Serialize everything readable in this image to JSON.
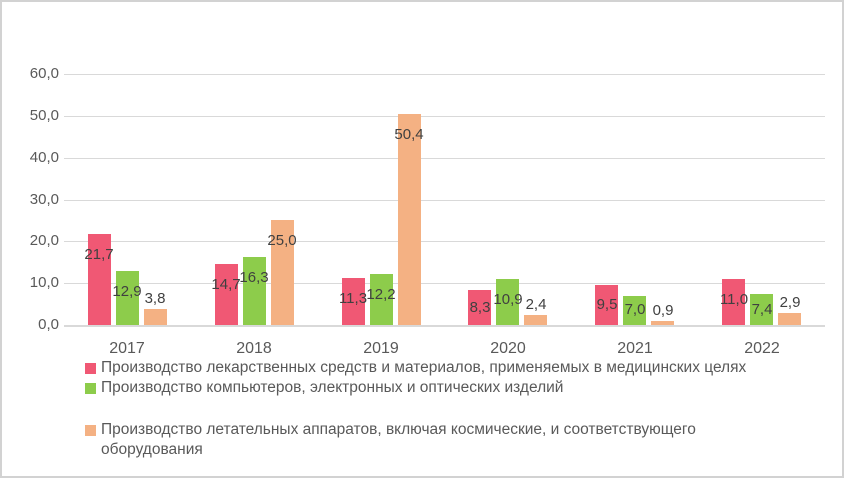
{
  "chart_data": {
    "type": "bar",
    "title": "",
    "categories": [
      "2017",
      "2018",
      "2019",
      "2020",
      "2021",
      "2022"
    ],
    "series": [
      {
        "name": "Производство лекарственных средств и материалов, применяемых в медицинских целях",
        "color": "#F05874",
        "values": [
          21.7,
          14.7,
          11.3,
          8.3,
          9.5,
          11.0
        ],
        "value_labels": [
          "21,7",
          "14,7",
          "11,3",
          "8,3",
          "9,5",
          "11,0"
        ]
      },
      {
        "name": "Производство компьютеров, электронных и оптических изделий",
        "color": "#8DCC4B",
        "values": [
          12.9,
          16.3,
          12.2,
          10.9,
          7.0,
          7.4
        ],
        "value_labels": [
          "12,9",
          "16,3",
          "12,2",
          "10,9",
          "7,0",
          "7,4"
        ]
      },
      {
        "name": "Производство летательных аппаратов, включая космические, и соответствующего оборудования",
        "color": "#F4B183",
        "values": [
          3.8,
          25.0,
          50.4,
          2.4,
          0.9,
          2.9
        ],
        "value_labels": [
          "3,8",
          "25,0",
          "50,4",
          "2,4",
          "0,9",
          "2,9"
        ]
      }
    ],
    "y_axis": {
      "tick_values": [
        60,
        50,
        40,
        30,
        20,
        10,
        0
      ],
      "tick_labels": [
        "60,0",
        "50,0",
        "40,0",
        "30,0",
        "20,0",
        "10,0",
        "0,0"
      ],
      "min": 0,
      "max": 60
    },
    "grid": true,
    "legend_position": "bottom",
    "colors": {
      "grid": "#D9D9D9",
      "axis_text": "#595959",
      "data_label": "#404040",
      "frame_border": "#D2D2D2",
      "background": "#FFFFFF"
    }
  }
}
